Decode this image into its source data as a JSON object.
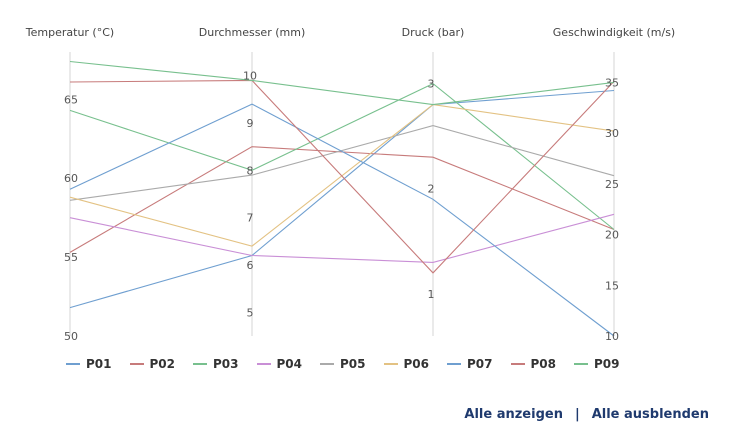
{
  "chart_data": {
    "type": "parallel-coordinates",
    "axes": [
      {
        "label": "Temperatur (°C)",
        "min": 50,
        "max": 68,
        "ticks": [
          50,
          55,
          60,
          65
        ]
      },
      {
        "label": "Durchmesser (mm)",
        "min": 4.5,
        "max": 10.5,
        "ticks": [
          5,
          6,
          7,
          8,
          9,
          10
        ]
      },
      {
        "label": "Druck (bar)",
        "min": 0.6,
        "max": 3.3,
        "ticks": [
          1,
          2,
          3
        ]
      },
      {
        "label": "Geschwindigkeit (m/s)",
        "min": 10,
        "max": 38,
        "ticks": [
          10,
          15,
          20,
          25,
          30,
          35
        ]
      }
    ],
    "series": [
      {
        "name": "P01",
        "color": "#6f9fd0",
        "values": [
          51.8,
          6.2,
          2.8,
          34.2
        ]
      },
      {
        "name": "P02",
        "color": "#c77b7b",
        "values": [
          55.3,
          8.5,
          2.3,
          20.5
        ]
      },
      {
        "name": "P03",
        "color": "#78c08e",
        "values": [
          64.3,
          8.0,
          3.0,
          20.5
        ]
      },
      {
        "name": "P04",
        "color": "#c98fd6",
        "values": [
          57.5,
          6.2,
          1.3,
          22.0
        ]
      },
      {
        "name": "P05",
        "color": "#aaaaaa",
        "values": [
          58.6,
          7.9,
          2.6,
          25.8
        ]
      },
      {
        "name": "P06",
        "color": "#e3c283",
        "values": [
          58.8,
          6.4,
          2.8,
          30.2
        ]
      },
      {
        "name": "P07",
        "color": "#6f9fd0",
        "values": [
          59.3,
          9.4,
          1.9,
          10.0
        ]
      },
      {
        "name": "P08",
        "color": "#c77b7b",
        "values": [
          66.1,
          9.9,
          1.2,
          35.1
        ]
      },
      {
        "name": "P09",
        "color": "#78c08e",
        "values": [
          67.4,
          9.9,
          2.8,
          35.0
        ]
      }
    ]
  },
  "actions": {
    "show_all": "Alle anzeigen",
    "separator": "|",
    "hide_all": "Alle ausblenden"
  }
}
